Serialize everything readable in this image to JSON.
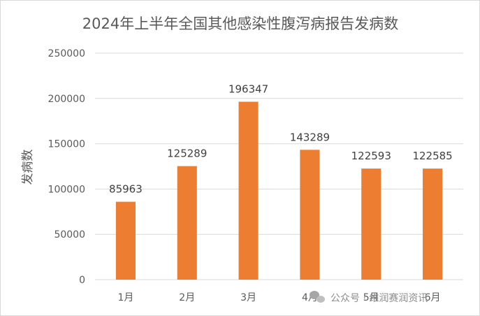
{
  "chart_data": {
    "type": "bar",
    "title": "2024年上半年全国其他感染性腹泻病报告发病数",
    "xlabel": "",
    "ylabel": "发病数",
    "categories": [
      "1月",
      "2月",
      "3月",
      "4月",
      "5月",
      "6月"
    ],
    "values": [
      85963,
      125289,
      196347,
      143289,
      122593,
      122585
    ],
    "ylim": [
      0,
      250000
    ],
    "yticks": [
      "0",
      "50000",
      "100000",
      "150000",
      "200000",
      "250000"
    ],
    "bar_color": "#ED7D31",
    "grid": true,
    "legend": "none"
  },
  "watermark": {
    "icon": "wechat-icon",
    "text": "公众号 · 维润赛润资讯"
  }
}
